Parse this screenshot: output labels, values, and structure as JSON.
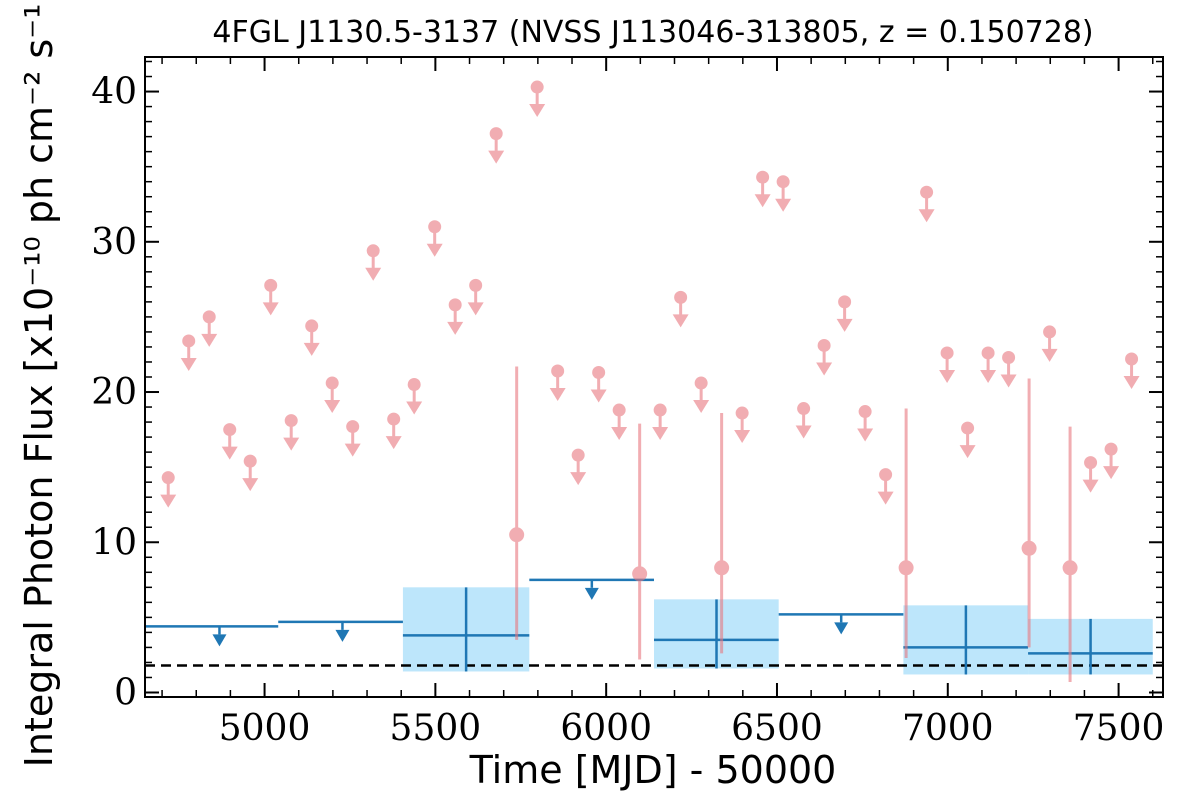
{
  "chart_data": {
    "type": "scatter",
    "title": "4FGL J1130.5-3137 (NVSS J113046-313805, z = 0.150728)",
    "xlabel": "Time [MJD] - 50000",
    "ylabel": "Integral Photon Flux [x10⁻¹⁰ ph cm⁻² s⁻¹]",
    "xlim": [
      4650,
      7630
    ],
    "ylim": [
      -0.3,
      42.3
    ],
    "xticks": [
      5000,
      5500,
      6000,
      6500,
      7000,
      7500
    ],
    "yticks": [
      0,
      10,
      20,
      30,
      40
    ],
    "grid": false,
    "reference_line": {
      "y": 1.8,
      "style": "dashed",
      "color": "#000000"
    },
    "colors": {
      "short_bins": "#e8787f",
      "long_bins": "#1f77b4",
      "error_band": "#bde6fb"
    },
    "short_bins": {
      "upper_limits": [
        {
          "x": 4718,
          "y": 14.3
        },
        {
          "x": 4778,
          "y": 23.4
        },
        {
          "x": 4838,
          "y": 25.0
        },
        {
          "x": 4898,
          "y": 17.5
        },
        {
          "x": 4958,
          "y": 15.4
        },
        {
          "x": 5018,
          "y": 27.1
        },
        {
          "x": 5078,
          "y": 18.1
        },
        {
          "x": 5138,
          "y": 24.4
        },
        {
          "x": 5198,
          "y": 20.6
        },
        {
          "x": 5258,
          "y": 17.7
        },
        {
          "x": 5318,
          "y": 29.4
        },
        {
          "x": 5378,
          "y": 18.2
        },
        {
          "x": 5438,
          "y": 20.5
        },
        {
          "x": 5498,
          "y": 31.0
        },
        {
          "x": 5558,
          "y": 25.8
        },
        {
          "x": 5618,
          "y": 27.1
        },
        {
          "x": 5678,
          "y": 37.2
        },
        {
          "x": 5798,
          "y": 40.3
        },
        {
          "x": 5858,
          "y": 21.4
        },
        {
          "x": 5918,
          "y": 15.8
        },
        {
          "x": 5978,
          "y": 21.3
        },
        {
          "x": 6038,
          "y": 18.8
        },
        {
          "x": 6158,
          "y": 18.8
        },
        {
          "x": 6218,
          "y": 26.3
        },
        {
          "x": 6278,
          "y": 20.6
        },
        {
          "x": 6398,
          "y": 18.6
        },
        {
          "x": 6458,
          "y": 34.3
        },
        {
          "x": 6518,
          "y": 34.0
        },
        {
          "x": 6578,
          "y": 18.9
        },
        {
          "x": 6638,
          "y": 23.1
        },
        {
          "x": 6698,
          "y": 26.0
        },
        {
          "x": 6758,
          "y": 18.7
        },
        {
          "x": 6818,
          "y": 14.5
        },
        {
          "x": 6938,
          "y": 33.3
        },
        {
          "x": 6998,
          "y": 22.6
        },
        {
          "x": 7058,
          "y": 17.6
        },
        {
          "x": 7118,
          "y": 22.6
        },
        {
          "x": 7178,
          "y": 22.3
        },
        {
          "x": 7298,
          "y": 24.0
        },
        {
          "x": 7418,
          "y": 15.3
        },
        {
          "x": 7478,
          "y": 16.2
        },
        {
          "x": 7538,
          "y": 22.2
        }
      ],
      "detections": [
        {
          "x": 5738,
          "y": 10.5,
          "ylow": 3.5,
          "yhigh": 21.7
        },
        {
          "x": 6098,
          "y": 7.9,
          "ylow": 2.2,
          "yhigh": 17.9
        },
        {
          "x": 6338,
          "y": 8.3,
          "ylow": 2.6,
          "yhigh": 18.6
        },
        {
          "x": 6878,
          "y": 8.3,
          "ylow": 2.3,
          "yhigh": 18.9
        },
        {
          "x": 7238,
          "y": 9.6,
          "ylow": 3.0,
          "yhigh": 20.9
        },
        {
          "x": 7358,
          "y": 8.3,
          "ylow": 0.7,
          "yhigh": 17.7
        }
      ]
    },
    "long_bins": {
      "upper_limits": [
        {
          "x0": 4650,
          "x1": 5040,
          "y": 4.4,
          "xc": 4868
        },
        {
          "x0": 5040,
          "x1": 5405,
          "y": 4.7,
          "xc": 5228
        },
        {
          "x0": 5775,
          "x1": 6140,
          "y": 7.5,
          "xc": 5958
        },
        {
          "x0": 6505,
          "x1": 6870,
          "y": 5.2,
          "xc": 6688
        }
      ],
      "detections": [
        {
          "x0": 5405,
          "x1": 5775,
          "xc": 5590,
          "y": 3.8,
          "ylow": 1.4,
          "yhigh": 7.0
        },
        {
          "x0": 6140,
          "x1": 6505,
          "xc": 6323,
          "y": 3.5,
          "ylow": 1.6,
          "yhigh": 6.2
        },
        {
          "x0": 6870,
          "x1": 7235,
          "xc": 7053,
          "y": 3.0,
          "ylow": 1.2,
          "yhigh": 5.8
        },
        {
          "x0": 7235,
          "x1": 7600,
          "xc": 7418,
          "y": 2.6,
          "ylow": 1.2,
          "yhigh": 4.9
        }
      ]
    }
  }
}
